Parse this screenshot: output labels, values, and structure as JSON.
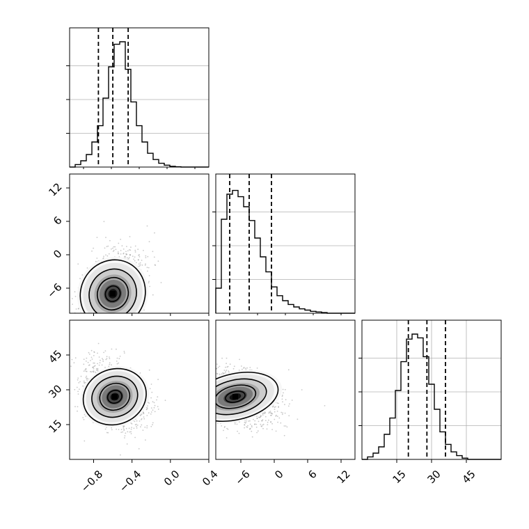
{
  "chart_data": [
    {
      "type": "histogram",
      "panel": "1D marginal, parameter 1",
      "bin_range": [
        -1.05,
        0.4
      ],
      "bins": 25,
      "counts": [
        0,
        0.02,
        0.05,
        0.1,
        0.2,
        0.33,
        0.55,
        0.8,
        0.98,
        1.0,
        0.78,
        0.52,
        0.33,
        0.2,
        0.11,
        0.06,
        0.03,
        0.015,
        0.006,
        0.002,
        0,
        0,
        0,
        0,
        0
      ],
      "quantiles": [
        -0.75,
        -0.6,
        -0.44
      ],
      "xlim": [
        -1.05,
        0.4
      ],
      "grid": true
    },
    {
      "type": "scatter",
      "panel": "2D joint, parameter 1 vs parameter 2",
      "xlim": [
        -1.05,
        0.4
      ],
      "ylim": [
        -10.5,
        14.5
      ],
      "peak": [
        -0.6,
        -7
      ],
      "yticks": [
        "12",
        "6",
        "0",
        "−6"
      ],
      "ytick_values": [
        12,
        6,
        0,
        -6
      ],
      "contour_levels": 4
    },
    {
      "type": "histogram",
      "panel": "1D marginal, parameter 2",
      "bin_range": [
        -10.5,
        14.5
      ],
      "bins": 25,
      "counts": [
        0.2,
        0.75,
        0.95,
        0.98,
        0.93,
        0.85,
        0.74,
        0.6,
        0.45,
        0.33,
        0.21,
        0.14,
        0.1,
        0.07,
        0.05,
        0.035,
        0.025,
        0.015,
        0.01,
        0.005,
        0,
        0,
        0,
        0,
        0
      ],
      "quantiles": [
        -8,
        -4.5,
        -0.5
      ],
      "xlim": [
        -10.5,
        14.5
      ],
      "grid": true
    },
    {
      "type": "scatter",
      "panel": "2D joint, parameter 1 vs parameter 3",
      "xlim": [
        -1.05,
        0.4
      ],
      "ylim": [
        0,
        60
      ],
      "peak": [
        -0.58,
        27
      ],
      "xticks": [
        "−0.8",
        "−0.4",
        "0.0",
        "0.4"
      ],
      "xtick_values": [
        -0.8,
        -0.4,
        0.0,
        0.4
      ],
      "yticks": [
        "45",
        "30",
        "15"
      ],
      "ytick_values": [
        45,
        30,
        15
      ],
      "contour_levels": 4
    },
    {
      "type": "scatter",
      "panel": "2D joint, parameter 2 vs parameter 3",
      "xlim": [
        -10.5,
        14.5
      ],
      "ylim": [
        0,
        60
      ],
      "peak": [
        -7,
        27
      ],
      "xticks": [
        "−6",
        "0",
        "6",
        "12"
      ],
      "xtick_values": [
        -6,
        0,
        6,
        12
      ],
      "contour_levels": 4
    },
    {
      "type": "histogram",
      "panel": "1D marginal, parameter 3",
      "bin_range": [
        0,
        60
      ],
      "bins": 25,
      "counts": [
        0,
        0.02,
        0.05,
        0.1,
        0.2,
        0.33,
        0.55,
        0.78,
        0.96,
        1.0,
        0.97,
        0.82,
        0.6,
        0.4,
        0.22,
        0.12,
        0.06,
        0.03,
        0.01,
        0,
        0,
        0,
        0,
        0,
        0
      ],
      "quantiles": [
        20,
        28,
        36
      ],
      "xticks": [
        "15",
        "30",
        "45"
      ],
      "xtick_values": [
        15,
        30,
        45
      ],
      "xlim": [
        0,
        60
      ],
      "grid": true
    }
  ]
}
